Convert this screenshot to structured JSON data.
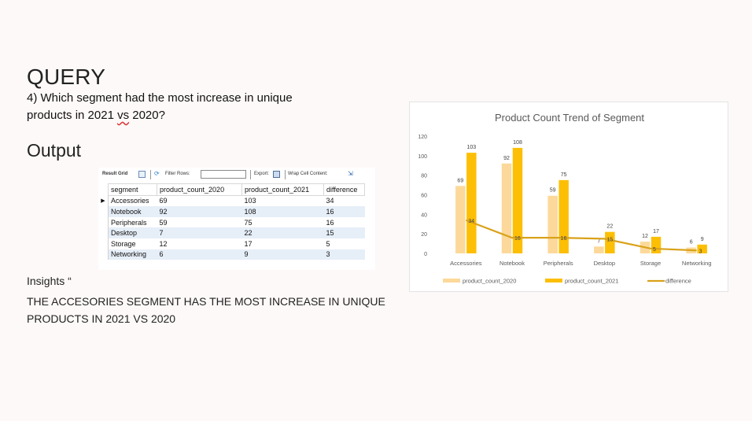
{
  "slide": {
    "title": "QUERY",
    "question": "4) Which segment had the most increase in unique products in 2021 vs 2020?",
    "question_parts": [
      "4) Which segment had the most increase in unique",
      "products in 2021 ",
      "vs",
      " 2020?"
    ],
    "output_heading": "Output",
    "insights_heading": "Insights “",
    "insight_text": "THE ACCESORIES SEGMENT HAS THE MOST INCREASE IN UNIQUE PRODUCTS IN 2021 VS 2020"
  },
  "grid_toolbar": {
    "result_grid": "Result Grid",
    "filter_rows": "Filter Rows:",
    "export": "Export:",
    "wrap_cell": "Wrap Cell Content:"
  },
  "result_table": {
    "columns": [
      "segment",
      "product_count_2020",
      "product_count_2021",
      "difference"
    ],
    "rows": [
      [
        "Accessories",
        "69",
        "103",
        "34"
      ],
      [
        "Notebook",
        "92",
        "108",
        "16"
      ],
      [
        "Peripherals",
        "59",
        "75",
        "16"
      ],
      [
        "Desktop",
        "7",
        "22",
        "15"
      ],
      [
        "Storage",
        "12",
        "17",
        "5"
      ],
      [
        "Networking",
        "6",
        "9",
        "3"
      ]
    ]
  },
  "colors": {
    "bar_2020": "#fcd99a",
    "bar_2021": "#fdbf06",
    "line_difference": "#d9a21a",
    "grid_row_alt": "#e6eef8",
    "background": "#fdf9f8"
  },
  "chart_data": {
    "type": "bar",
    "title": "Product Count Trend of Segment",
    "categories": [
      "Accessories",
      "Notebook",
      "Peripherals",
      "Desktop",
      "Storage",
      "Networking"
    ],
    "series": [
      {
        "name": "product_count_2020",
        "type": "bar",
        "values": [
          69,
          92,
          59,
          7,
          12,
          6
        ]
      },
      {
        "name": "product_count_2021",
        "type": "bar",
        "values": [
          103,
          108,
          75,
          22,
          17,
          9
        ]
      },
      {
        "name": "difference",
        "type": "line",
        "values": [
          34,
          16,
          16,
          15,
          5,
          3
        ]
      }
    ],
    "yticks": [
      0,
      20,
      40,
      60,
      80,
      100,
      120
    ],
    "ylim": [
      0,
      120
    ],
    "legend_position": "bottom",
    "grid": false
  }
}
